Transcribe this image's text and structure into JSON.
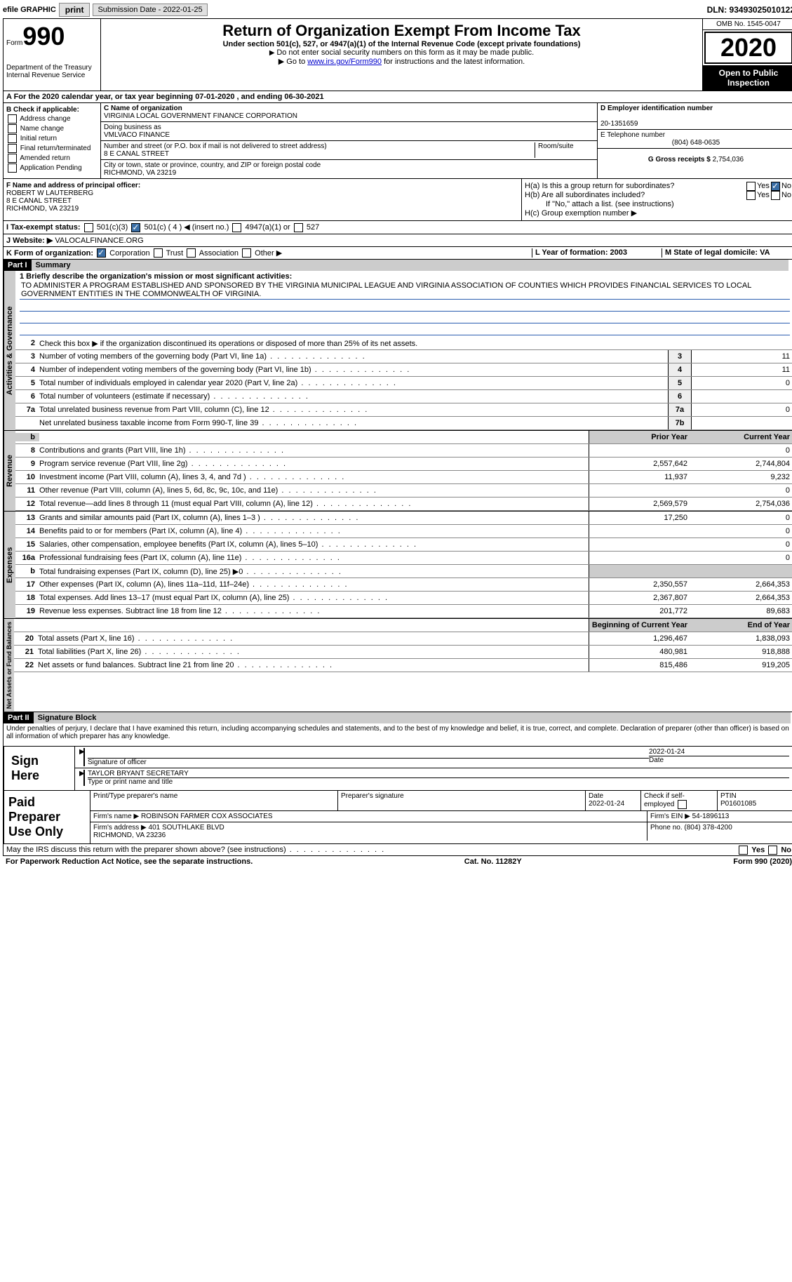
{
  "topbar": {
    "efile": "efile GRAPHIC",
    "print": "print",
    "submission_label": "Submission Date - 2022-01-25",
    "dln": "DLN: 93493025010122"
  },
  "header": {
    "form_word": "Form",
    "form_num": "990",
    "dept": "Department of the Treasury\nInternal Revenue Service",
    "title": "Return of Organization Exempt From Income Tax",
    "subtitle": "Under section 501(c), 527, or 4947(a)(1) of the Internal Revenue Code (except private foundations)",
    "note1": "Do not enter social security numbers on this form as it may be made public.",
    "note2_pre": "Go to ",
    "note2_link": "www.irs.gov/Form990",
    "note2_post": " for instructions and the latest information.",
    "omb": "OMB No. 1545-0047",
    "year": "2020",
    "inspect": "Open to Public Inspection"
  },
  "line_a": "A For the 2020 calendar year, or tax year beginning 07-01-2020   , and ending 06-30-2021",
  "box_b": {
    "label": "B Check if applicable:",
    "addr": "Address change",
    "name": "Name change",
    "init": "Initial return",
    "final": "Final return/terminated",
    "amend": "Amended return",
    "app": "Application Pending"
  },
  "box_c": {
    "name_label": "C Name of organization",
    "name": "VIRGINIA LOCAL GOVERNMENT FINANCE CORPORATION",
    "dba_label": "Doing business as",
    "dba": "VMLVACO FINANCE",
    "street_label": "Number and street (or P.O. box if mail is not delivered to street address)",
    "room_label": "Room/suite",
    "street": "8 E CANAL STREET",
    "city_label": "City or town, state or province, country, and ZIP or foreign postal code",
    "city": "RICHMOND, VA  23219"
  },
  "box_d": {
    "label": "D Employer identification number",
    "value": "20-1351659"
  },
  "box_e": {
    "label": "E Telephone number",
    "value": "(804) 648-0635"
  },
  "box_g": {
    "label": "G Gross receipts $",
    "value": "2,754,036"
  },
  "box_f": {
    "label": "F  Name and address of principal officer:",
    "name": "ROBERT W LAUTERBERG",
    "addr1": "8 E CANAL STREET",
    "addr2": "RICHMOND, VA  23219"
  },
  "box_h": {
    "ha_label": "H(a)  Is this a group return for subordinates?",
    "hb_label": "H(b)  Are all subordinates included?",
    "hb_note": "If \"No,\" attach a list. (see instructions)",
    "hc_label": "H(c)  Group exemption number ▶",
    "yes": "Yes",
    "no": "No"
  },
  "line_i": {
    "label": "I   Tax-exempt status:",
    "c3": "501(c)(3)",
    "c": "501(c) ( 4 ) ◀ (insert no.)",
    "a1": "4947(a)(1) or",
    "527": "527"
  },
  "line_j": {
    "label": "J   Website: ▶",
    "value": " VALOCALFINANCE.ORG"
  },
  "line_k": {
    "label": "K Form of organization:",
    "corp": "Corporation",
    "trust": "Trust",
    "assoc": "Association",
    "other": "Other ▶"
  },
  "line_l": {
    "label": "L Year of formation: 2003"
  },
  "line_m": {
    "label": "M State of legal domicile: VA"
  },
  "part1": {
    "hdr": "Part I",
    "title": "Summary",
    "q1_label": "1   Briefly describe the organization's mission or most significant activities:",
    "q1_text": "TO ADMINISTER A PROGRAM ESTABLISHED AND SPONSORED BY THE VIRGINIA MUNICIPAL LEAGUE AND VIRGINIA ASSOCIATION OF COUNTIES WHICH PROVIDES FINANCIAL SERVICES TO LOCAL GOVERNMENT ENTITIES IN THE COMMONWEALTH OF VIRGINIA.",
    "q2": "Check this box ▶       if the organization discontinued its operations or disposed of more than 25% of its net assets.",
    "side_gov": "Activities & Governance",
    "side_rev": "Revenue",
    "side_exp": "Expenses",
    "side_net": "Net Assets or Fund Balances",
    "prior": "Prior Year",
    "current": "Current Year",
    "begin": "Beginning of Current Year",
    "end": "End of Year",
    "rows_gov": [
      {
        "n": "3",
        "t": "Number of voting members of the governing body (Part VI, line 1a)",
        "box": "3",
        "v": "11"
      },
      {
        "n": "4",
        "t": "Number of independent voting members of the governing body (Part VI, line 1b)",
        "box": "4",
        "v": "11"
      },
      {
        "n": "5",
        "t": "Total number of individuals employed in calendar year 2020 (Part V, line 2a)",
        "box": "5",
        "v": "0"
      },
      {
        "n": "6",
        "t": "Total number of volunteers (estimate if necessary)",
        "box": "6",
        "v": ""
      },
      {
        "n": "7a",
        "t": "Total unrelated business revenue from Part VIII, column (C), line 12",
        "box": "7a",
        "v": "0"
      },
      {
        "n": "",
        "t": "Net unrelated business taxable income from Form 990-T, line 39",
        "box": "7b",
        "v": ""
      }
    ],
    "rows_rev": [
      {
        "n": "8",
        "t": "Contributions and grants (Part VIII, line 1h)",
        "p": "",
        "c": "0"
      },
      {
        "n": "9",
        "t": "Program service revenue (Part VIII, line 2g)",
        "p": "2,557,642",
        "c": "2,744,804"
      },
      {
        "n": "10",
        "t": "Investment income (Part VIII, column (A), lines 3, 4, and 7d )",
        "p": "11,937",
        "c": "9,232"
      },
      {
        "n": "11",
        "t": "Other revenue (Part VIII, column (A), lines 5, 6d, 8c, 9c, 10c, and 11e)",
        "p": "",
        "c": "0"
      },
      {
        "n": "12",
        "t": "Total revenue—add lines 8 through 11 (must equal Part VIII, column (A), line 12)",
        "p": "2,569,579",
        "c": "2,754,036"
      }
    ],
    "rows_exp": [
      {
        "n": "13",
        "t": "Grants and similar amounts paid (Part IX, column (A), lines 1–3 )",
        "p": "17,250",
        "c": "0"
      },
      {
        "n": "14",
        "t": "Benefits paid to or for members (Part IX, column (A), line 4)",
        "p": "",
        "c": "0"
      },
      {
        "n": "15",
        "t": "Salaries, other compensation, employee benefits (Part IX, column (A), lines 5–10)",
        "p": "",
        "c": "0"
      },
      {
        "n": "16a",
        "t": "Professional fundraising fees (Part IX, column (A), line 11e)",
        "p": "",
        "c": "0"
      },
      {
        "n": "b",
        "t": "Total fundraising expenses (Part IX, column (D), line 25) ▶0",
        "p": "SHADE",
        "c": "SHADE"
      },
      {
        "n": "17",
        "t": "Other expenses (Part IX, column (A), lines 11a–11d, 11f–24e)",
        "p": "2,350,557",
        "c": "2,664,353"
      },
      {
        "n": "18",
        "t": "Total expenses. Add lines 13–17 (must equal Part IX, column (A), line 25)",
        "p": "2,367,807",
        "c": "2,664,353"
      },
      {
        "n": "19",
        "t": "Revenue less expenses. Subtract line 18 from line 12",
        "p": "201,772",
        "c": "89,683"
      }
    ],
    "rows_net": [
      {
        "n": "20",
        "t": "Total assets (Part X, line 16)",
        "p": "1,296,467",
        "c": "1,838,093"
      },
      {
        "n": "21",
        "t": "Total liabilities (Part X, line 26)",
        "p": "480,981",
        "c": "918,888"
      },
      {
        "n": "22",
        "t": "Net assets or fund balances. Subtract line 21 from line 20",
        "p": "815,486",
        "c": "919,205"
      }
    ]
  },
  "part2": {
    "hdr": "Part II",
    "title": "Signature Block",
    "decl": "Under penalties of perjury, I declare that I have examined this return, including accompanying schedules and statements, and to the best of my knowledge and belief, it is true, correct, and complete. Declaration of preparer (other than officer) is based on all information of which preparer has any knowledge.",
    "sign_here": "Sign Here",
    "sig_officer": "Signature of officer",
    "sig_date": "2022-01-24",
    "date_label": "Date",
    "officer_name": "TAYLOR BRYANT SECRETARY",
    "type_label": "Type or print name and title",
    "paid": "Paid Preparer Use Only",
    "print_label": "Print/Type preparer's name",
    "prep_sig_label": "Preparer's signature",
    "prep_date_label": "Date",
    "prep_date": "2022-01-24",
    "check_self": "Check         if self-employed",
    "ptin_label": "PTIN",
    "ptin": "P01601085",
    "firm_name_label": "Firm's name      ▶",
    "firm_name": "ROBINSON FARMER COX ASSOCIATES",
    "firm_ein_label": "Firm's EIN ▶",
    "firm_ein": "54-1896113",
    "firm_addr_label": "Firm's address ▶",
    "firm_addr": "401 SOUTHLAKE BLVD\nRICHMOND, VA  23236",
    "phone_label": "Phone no.",
    "phone": "(804) 378-4200",
    "discuss": "May the IRS discuss this return with the preparer shown above? (see instructions)",
    "yes": "Yes",
    "no": "No"
  },
  "footer": {
    "pra": "For Paperwork Reduction Act Notice, see the separate instructions.",
    "cat": "Cat. No. 11282Y",
    "form": "Form 990 (2020)"
  }
}
